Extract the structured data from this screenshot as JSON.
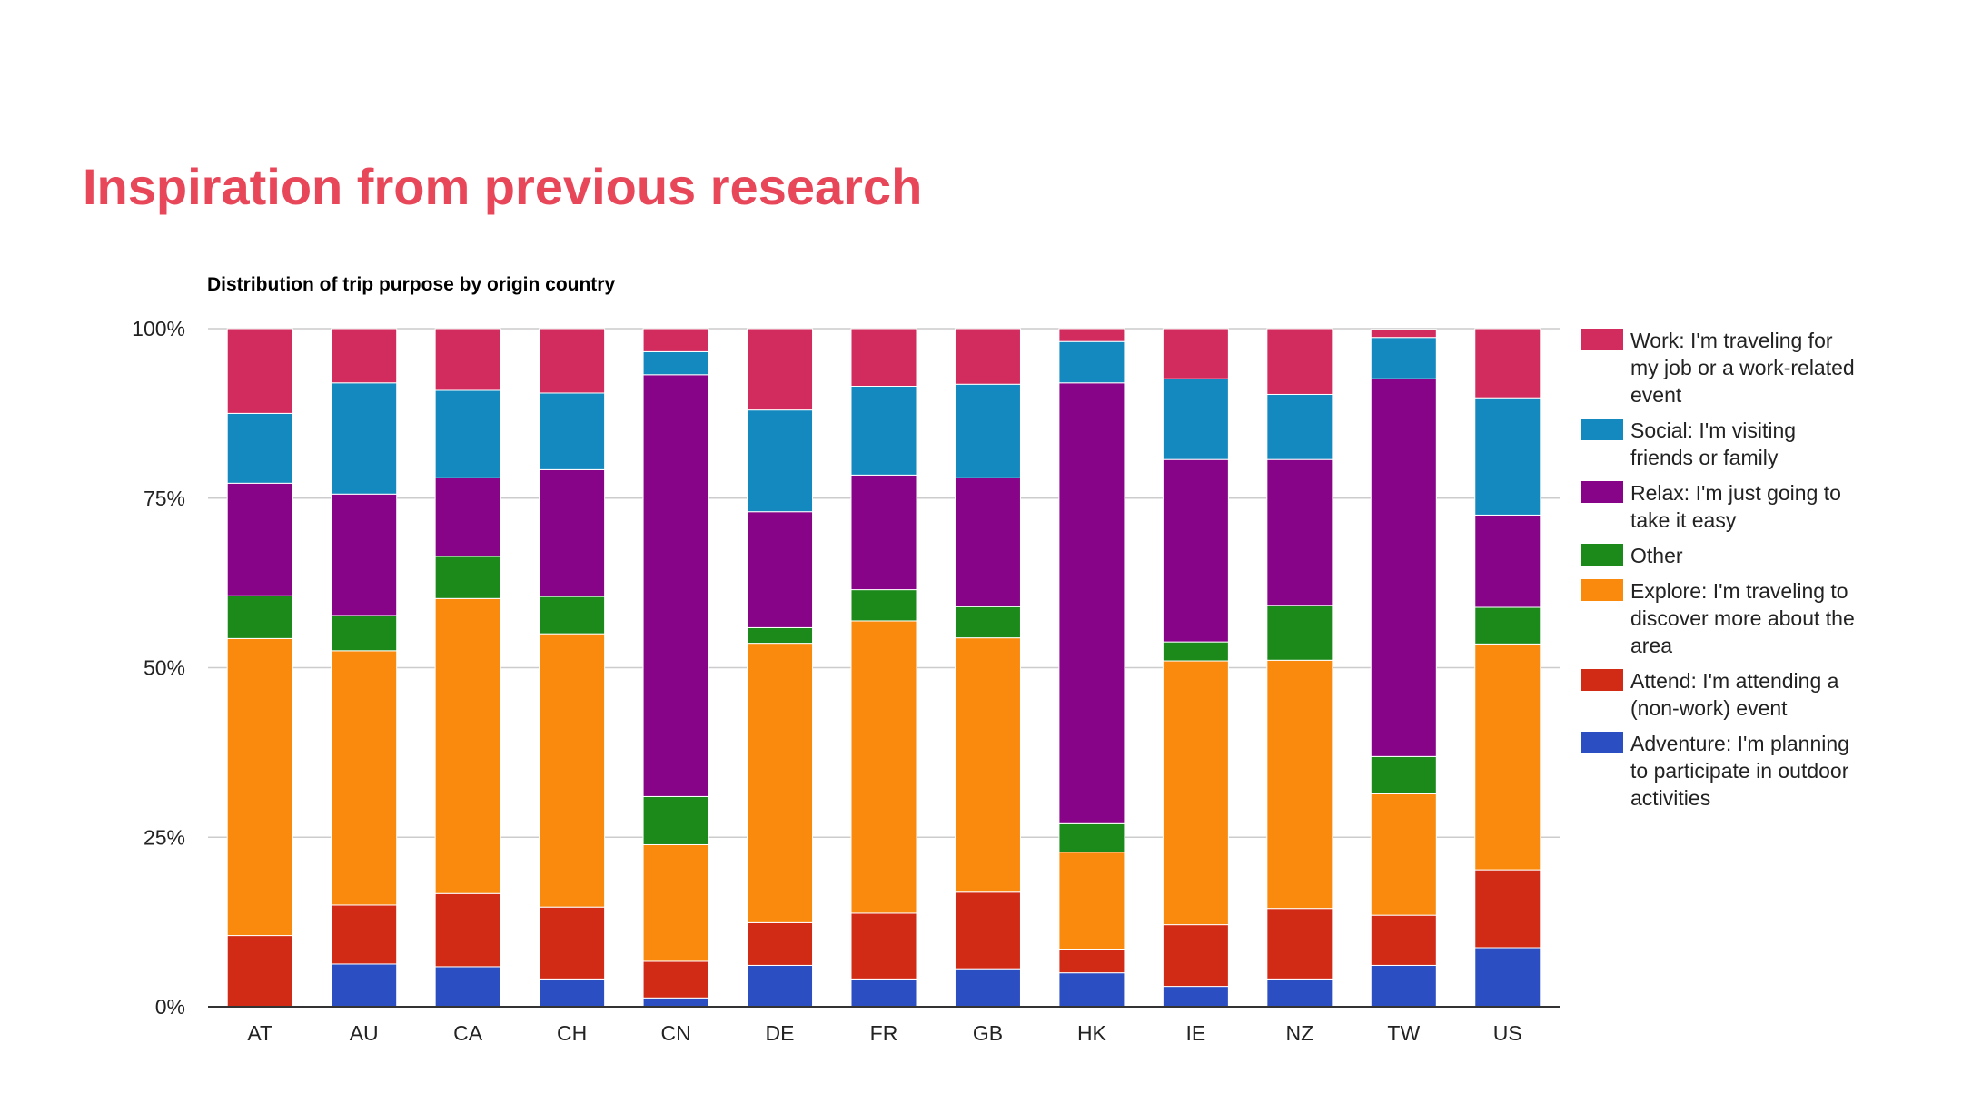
{
  "slide": {
    "title": "Inspiration from previous research",
    "title_color": "#e8475a"
  },
  "chart_data": {
    "type": "bar",
    "stacked": true,
    "normalized_percent": true,
    "title": "Distribution of trip purpose by origin country",
    "xlabel": "",
    "ylabel": "",
    "ylim": [
      0,
      100
    ],
    "yticks": [
      "0%",
      "25%",
      "50%",
      "75%",
      "100%"
    ],
    "grid": true,
    "legend_position": "right",
    "categories": [
      "AT",
      "AU",
      "CA",
      "CH",
      "CN",
      "DE",
      "FR",
      "GB",
      "HK",
      "IE",
      "NZ",
      "TW",
      "US"
    ],
    "series": [
      {
        "key": "adventure",
        "name": "Adventure: I'm planning to participate in outdoor activities",
        "legend_lines": [
          "Adventure: I'm planning",
          "to participate in outdoor",
          "activities"
        ],
        "color": "#2c4ec3",
        "values": [
          0,
          6.3,
          5.9,
          4.1,
          1.3,
          6.1,
          4.1,
          5.6,
          5.0,
          3.0,
          4.1,
          6.1,
          8.7
        ]
      },
      {
        "key": "attend",
        "name": "Attend: I'm attending a (non-work) event",
        "legend_lines": [
          "Attend: I'm attending a",
          "(non-work) event"
        ],
        "color": "#d12b16",
        "values": [
          10.5,
          8.7,
          10.8,
          10.6,
          5.4,
          6.3,
          9.7,
          11.3,
          3.5,
          9.1,
          10.4,
          7.4,
          11.5
        ]
      },
      {
        "key": "explore",
        "name": "Explore: I'm traveling to discover more about the area",
        "legend_lines": [
          "Explore: I'm traveling to",
          "discover more about the",
          "area"
        ],
        "color": "#f98a0d",
        "values": [
          43.8,
          37.5,
          43.5,
          40.3,
          17.2,
          41.2,
          43.1,
          37.5,
          14.3,
          38.9,
          36.6,
          17.9,
          33.3
        ]
      },
      {
        "key": "other",
        "name": "Other",
        "legend_lines": [
          "Other"
        ],
        "color": "#1b8a1b",
        "values": [
          6.3,
          5.2,
          6.2,
          5.5,
          7.1,
          2.3,
          4.6,
          4.6,
          4.2,
          2.8,
          8.1,
          5.5,
          5.4
        ]
      },
      {
        "key": "relax",
        "name": "Relax: I'm just going to take it easy",
        "legend_lines": [
          "Relax: I'm just going to",
          "take it easy"
        ],
        "color": "#870488",
        "values": [
          16.6,
          17.9,
          11.6,
          18.7,
          62.2,
          17.1,
          16.9,
          19.0,
          65.0,
          26.9,
          21.5,
          55.7,
          13.6
        ]
      },
      {
        "key": "social",
        "name": "Social: I'm visiting friends or family",
        "legend_lines": [
          "Social: I'm visiting",
          "friends or family"
        ],
        "color": "#1389bf",
        "values": [
          10.3,
          16.4,
          12.9,
          11.3,
          3.4,
          15.0,
          13.1,
          13.8,
          6.1,
          11.9,
          9.6,
          6.1,
          17.3
        ]
      },
      {
        "key": "work",
        "name": "Work: I'm traveling for my job or a work-related event",
        "legend_lines": [
          "Work: I'm traveling for",
          "my job or a work-related",
          "event"
        ],
        "color": "#d22b5e",
        "values": [
          12.5,
          8.0,
          9.1,
          9.5,
          3.4,
          12.0,
          8.5,
          8.2,
          1.9,
          7.4,
          9.7,
          1.2,
          10.2
        ]
      }
    ],
    "legend_order": [
      "work",
      "social",
      "relax",
      "other",
      "explore",
      "attend",
      "adventure"
    ],
    "colors": {
      "axis": "#333333",
      "grid": "#cccccc",
      "text": "#222222"
    }
  }
}
